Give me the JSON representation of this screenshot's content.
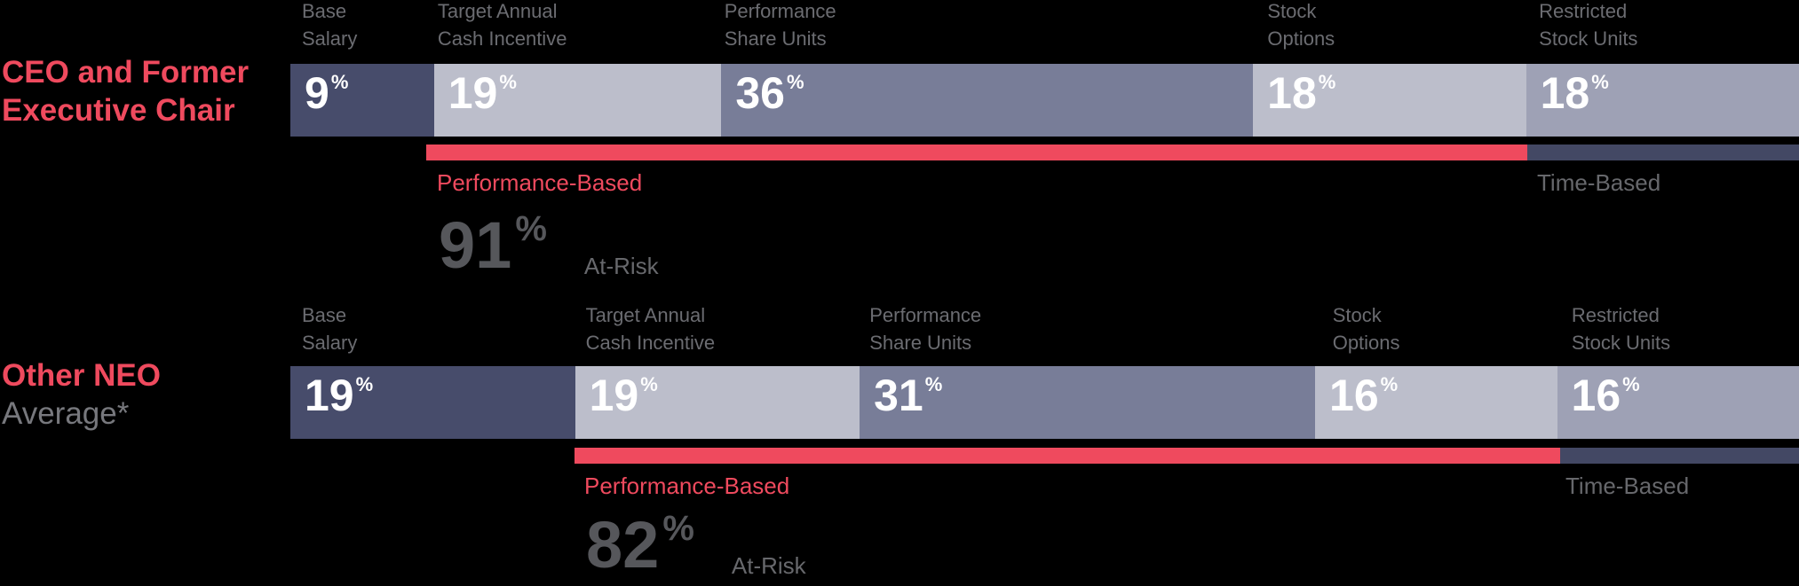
{
  "chart_data": {
    "type": "bar",
    "orientation": "horizontal-stacked",
    "unit": "%",
    "background": "#000000",
    "rows": [
      {
        "label_lines": [
          "CEO and Former",
          "Executive Chair"
        ],
        "label_secondary": "",
        "segments": [
          {
            "category": "Base Salary",
            "header_lines": [
              "Base",
              "Salary"
            ],
            "value": 9,
            "display": "9",
            "color": "#474c6b",
            "risk": "fixed"
          },
          {
            "category": "Target Annual Cash Incentive",
            "header_lines": [
              "Target Annual",
              "Cash Incentive"
            ],
            "value": 19,
            "display": "19",
            "color": "#bcbecb",
            "risk": "performance"
          },
          {
            "category": "Performance Share Units",
            "header_lines": [
              "Performance",
              "Share Units"
            ],
            "value": 36,
            "display": "36",
            "color": "#787d98",
            "risk": "performance"
          },
          {
            "category": "Stock Options",
            "header_lines": [
              "Stock",
              "Options"
            ],
            "value": 18,
            "display": "18",
            "color": "#bcbecb",
            "risk": "performance"
          },
          {
            "category": "Restricted Stock Units",
            "header_lines": [
              "Restricted",
              "Stock Units"
            ],
            "value": 18,
            "display": "18",
            "color": "#9ea1b5",
            "risk": "time"
          }
        ],
        "performance_based_label": "Performance-Based",
        "time_based_label": "Time-Based",
        "at_risk_value": "91",
        "at_risk_unit": "%",
        "at_risk_label": "At-Risk"
      },
      {
        "label_lines": [
          "Other NEO"
        ],
        "label_secondary": "Average*",
        "segments": [
          {
            "category": "Base Salary",
            "header_lines": [
              "Base",
              "Salary"
            ],
            "value": 19,
            "display": "19",
            "color": "#474c6b",
            "risk": "fixed"
          },
          {
            "category": "Target Annual Cash Incentive",
            "header_lines": [
              "Target Annual",
              "Cash Incentive"
            ],
            "value": 19,
            "display": "19",
            "color": "#bcbecb",
            "risk": "performance"
          },
          {
            "category": "Performance Share Units",
            "header_lines": [
              "Performance",
              "Share Units"
            ],
            "value": 31,
            "display": "31",
            "color": "#787d98",
            "risk": "performance"
          },
          {
            "category": "Stock Options",
            "header_lines": [
              "Stock",
              "Options"
            ],
            "value": 16,
            "display": "16",
            "color": "#bcbecb",
            "risk": "performance"
          },
          {
            "category": "Restricted Stock Units",
            "header_lines": [
              "Restricted",
              "Stock Units"
            ],
            "value": 16,
            "display": "16",
            "color": "#9ea1b5",
            "risk": "time"
          }
        ],
        "performance_based_label": "Performance-Based",
        "time_based_label": "Time-Based",
        "at_risk_value": "82",
        "at_risk_unit": "%",
        "at_risk_label": "At-Risk"
      }
    ]
  },
  "colors": {
    "background": "#000000",
    "accent_red": "#ef4a5e",
    "time_based_bar": "#434864",
    "base_salary_segment": "#474c6b",
    "cash_incentive_segment": "#bcbecb",
    "psu_segment": "#787d98",
    "rsu_segment": "#9ea1b5",
    "header_text": "#6b6c71",
    "annotation_text": "#67686c",
    "big_number_text": "#56575b",
    "value_text": "#ffffff"
  }
}
